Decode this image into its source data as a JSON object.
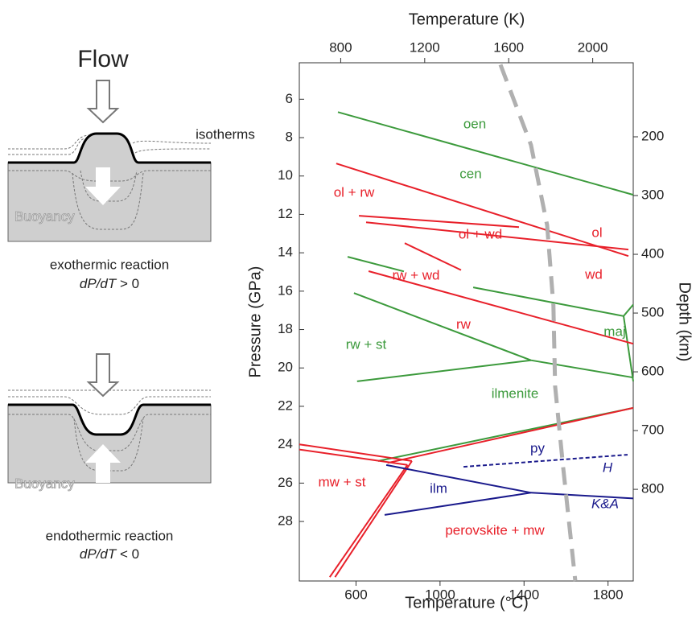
{
  "schematic": {
    "title": "Flow",
    "isotherms": "isotherms",
    "buoyancy_top": "Buoyancy",
    "buoyancy_bottom": "Buoyancy",
    "exo_label": "exothermic reaction",
    "exo_slope": "dP/dT",
    "exo_sign": "> 0",
    "endo_label": "endothermic reaction",
    "endo_slope": "dP/dT",
    "endo_sign": "< 0"
  },
  "chart_data": {
    "type": "line",
    "x_title": "Temperature (°C)",
    "x2_title": "Temperature (K)",
    "y_title": "Pressure (GPa)",
    "y2_title": "Depth (km)",
    "xlim": [
      330,
      1920
    ],
    "xticks": [
      600,
      1000,
      1400,
      1800
    ],
    "x2lim": [
      603,
      2193
    ],
    "x2ticks": [
      800,
      1200,
      1600,
      2000
    ],
    "ylim": [
      4.1,
      31.1
    ],
    "y_inverted": true,
    "yticks": [
      6,
      8,
      10,
      12,
      14,
      16,
      18,
      20,
      22,
      24,
      26,
      28
    ],
    "y2lim": [
      74,
      956
    ],
    "y2ticks": [
      200,
      300,
      400,
      500,
      600,
      700,
      800
    ],
    "series": [
      {
        "color": "#3c9a3c",
        "x": [
          514,
          1920
        ],
        "values": [
          6.67,
          10.98
        ]
      },
      {
        "color": "#3c9a3c",
        "x": [
          560,
          828
        ],
        "values": [
          14.21,
          14.97
        ]
      },
      {
        "color": "#3c9a3c",
        "x": [
          1158,
          1874,
          1920
        ],
        "values": [
          15.8,
          17.3,
          16.7
        ]
      },
      {
        "color": "#3c9a3c",
        "x": [
          1874,
          1920
        ],
        "values": [
          17.3,
          20.7
        ]
      },
      {
        "color": "#3c9a3c",
        "x": [
          590,
          1433,
          1920
        ],
        "values": [
          16.1,
          19.6,
          20.5
        ]
      },
      {
        "color": "#3c9a3c",
        "x": [
          605,
          1433
        ],
        "values": [
          20.7,
          19.6
        ]
      },
      {
        "color": "#3c9a3c",
        "x": [
          705,
          1920
        ],
        "values": [
          24.85,
          22.08
        ]
      },
      {
        "color": "#e8202a",
        "x": [
          506,
          1897
        ],
        "values": [
          9.35,
          14.17
        ]
      },
      {
        "color": "#e8202a",
        "x": [
          614,
          1376
        ],
        "values": [
          12.07,
          12.66
        ]
      },
      {
        "color": "#e8202a",
        "x": [
          648,
          1897
        ],
        "values": [
          12.41,
          13.83
        ]
      },
      {
        "color": "#e8202a",
        "x": [
          832,
          1100
        ],
        "values": [
          13.5,
          14.9
        ]
      },
      {
        "color": "#e8202a",
        "x": [
          660,
          1920
        ],
        "values": [
          14.96,
          18.74
        ]
      },
      {
        "color": "#e8202a",
        "x": [
          330,
          866
        ],
        "values": [
          23.98,
          24.85
        ]
      },
      {
        "color": "#e8202a",
        "x": [
          330,
          845
        ],
        "values": [
          24.25,
          25.05
        ]
      },
      {
        "color": "#e8202a",
        "x": [
          866,
          500
        ],
        "values": [
          24.85,
          30.9
        ]
      },
      {
        "color": "#e8202a",
        "x": [
          845,
          475
        ],
        "values": [
          25.05,
          30.9
        ]
      },
      {
        "color": "#e8202a",
        "x": [
          750,
          1920
        ],
        "values": [
          24.95,
          22.08
        ]
      },
      {
        "color": "#1a1a8c",
        "x": [
          744,
          1433
        ],
        "values": [
          25.06,
          26.5
        ]
      },
      {
        "color": "#1a1a8c",
        "x": [
          736,
          1433
        ],
        "values": [
          27.66,
          26.5
        ]
      },
      {
        "color": "#1a1a8c",
        "x": [
          1433,
          1920
        ],
        "values": [
          26.5,
          26.8
        ]
      },
      {
        "color": "#1a1a8c",
        "dashed": true,
        "x": [
          1112,
          1893
        ],
        "values": [
          25.15,
          24.52
        ]
      },
      {
        "color": "#b0b0b0",
        "dashed": true,
        "thick": true,
        "x": [
          1288,
          1433,
          1510,
          1540,
          1548,
          1586,
          1644
        ],
        "values": [
          4.2,
          8.38,
          12.57,
          16.76,
          20.95,
          25.14,
          31.1
        ]
      }
    ],
    "annotations": [
      {
        "text": "oen",
        "color": "#3c9a3c"
      },
      {
        "text": "cen",
        "color": "#3c9a3c"
      },
      {
        "text": "ol + rw",
        "color": "#e8202a"
      },
      {
        "text": "ol + wd",
        "color": "#e8202a"
      },
      {
        "text": "ol",
        "color": "#e8202a"
      },
      {
        "text": "wd",
        "color": "#e8202a"
      },
      {
        "text": "rw + wd",
        "color": "#e8202a"
      },
      {
        "text": "rw",
        "color": "#e8202a"
      },
      {
        "text": "maj",
        "color": "#3c9a3c"
      },
      {
        "text": "rw + st",
        "color": "#3c9a3c"
      },
      {
        "text": "ilmenite",
        "color": "#3c9a3c"
      },
      {
        "text": "py",
        "color": "#1a1a8c"
      },
      {
        "text": "H",
        "color": "#1a1a8c",
        "italic": true
      },
      {
        "text": "mw + st",
        "color": "#e8202a"
      },
      {
        "text": "ilm",
        "color": "#1a1a8c"
      },
      {
        "text": "K&A",
        "color": "#1a1a8c",
        "italic": true
      },
      {
        "text": "perovskite + mw",
        "color": "#e8202a"
      }
    ]
  }
}
